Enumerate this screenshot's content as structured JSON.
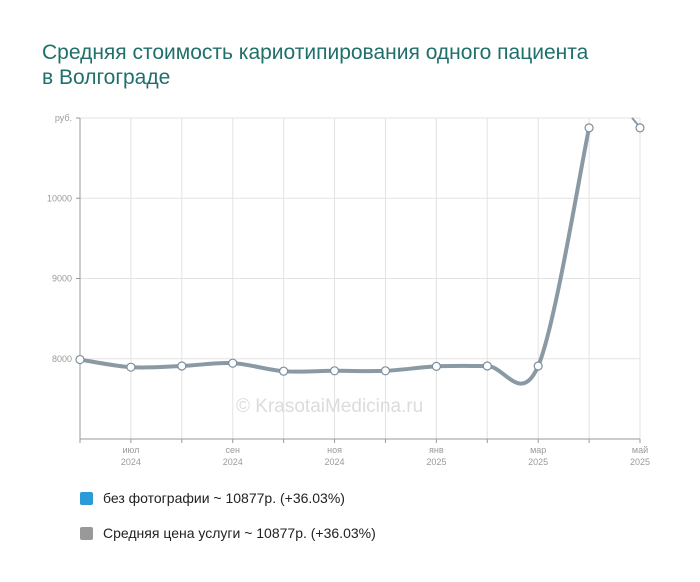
{
  "title": "Средняя стоимость кариотипирования одного пациента в Волгограде",
  "watermark": "© KrasotaiMedicina.ru",
  "legend": [
    {
      "label": "без фотографии ~ 10877р. (+36.03%)",
      "color": "#2a9ad9"
    },
    {
      "label": "Средняя цена услуги ~ 10877р. (+36.03%)",
      "color": "#999999"
    }
  ],
  "chart_data": {
    "type": "line",
    "title": "Средняя стоимость кариотипирования одного пациента в Волгограде",
    "ylabel": "руб.",
    "ylim": [
      7000,
      11000
    ],
    "yticks": [
      {
        "value": 8000,
        "label": "8000"
      },
      {
        "value": 9000,
        "label": "9000"
      },
      {
        "value": 10000,
        "label": "10000"
      },
      {
        "value": 11000,
        "label": "руб."
      }
    ],
    "x_month_ticks": [
      {
        "label": "июл",
        "year": "2024",
        "index": 1
      },
      {
        "label": "сен",
        "year": "2024",
        "index": 3
      },
      {
        "label": "ноя",
        "year": "2024",
        "index": 5
      },
      {
        "label": "янв",
        "year": "2025",
        "index": 7
      },
      {
        "label": "мар",
        "year": "2025",
        "index": 9
      },
      {
        "label": "май",
        "year": "2025",
        "index": 11
      }
    ],
    "series": [
      {
        "color": "#8a9aa4",
        "x": [
          "2024-06-01",
          "2024-07-01",
          "2024-08-01",
          "2024-09-01",
          "2024-10-01",
          "2024-11-01",
          "2024-12-01",
          "2025-01-01",
          "2025-02-01",
          "2025-03-01",
          "2025-04-01",
          "2025-05-01"
        ],
        "values": [
          7990,
          7895,
          7910,
          7945,
          7845,
          7850,
          7850,
          7905,
          7910,
          7910,
          10877,
          10877
        ]
      }
    ]
  }
}
